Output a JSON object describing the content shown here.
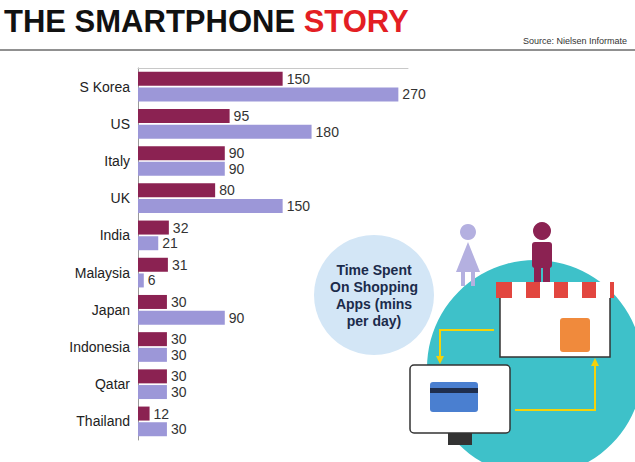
{
  "chart_data": {
    "type": "bar",
    "title": "THE SMARTPHONE STORY",
    "source": "Source: Nielsen Informate",
    "annotation": "Time Spent\nOn Shopping\nApps (mins\nper day)",
    "orientation": "horizontal",
    "categories": [
      "S Korea",
      "US",
      "Italy",
      "UK",
      "India",
      "Malaysia",
      "Japan",
      "Indonesia",
      "Qatar",
      "Thailand"
    ],
    "series": [
      {
        "color": "#8b2252",
        "values": [
          150,
          95,
          90,
          80,
          32,
          31,
          30,
          30,
          30,
          12
        ]
      },
      {
        "color": "#9c97d8",
        "values": [
          270,
          180,
          90,
          150,
          21,
          6,
          90,
          30,
          30,
          30
        ]
      }
    ],
    "xlim": [
      0,
      280
    ],
    "xticks": [],
    "tick_labels": "y",
    "data_labels": true,
    "grid": false
  }
}
